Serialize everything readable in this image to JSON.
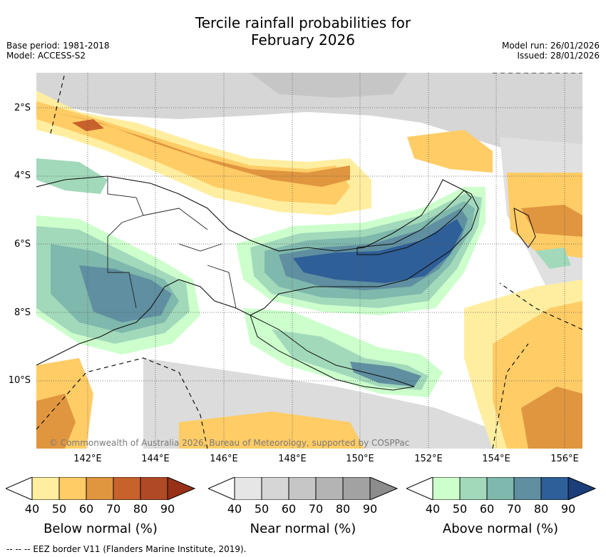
{
  "title_line1": "Tercile rainfall probabilities for",
  "title_line2": "February 2026",
  "base_period": "Base period: 1981-2018",
  "model": "Model: ACCESS-S2",
  "model_run": "Model run: 26/01/2026",
  "issued": "Issued: 28/01/2026",
  "lat_labels": [
    "2°S",
    "4°S",
    "6°S",
    "8°S",
    "10°S"
  ],
  "lon_labels": [
    "142°E",
    "144°E",
    "146°E",
    "148°E",
    "150°E",
    "152°E",
    "154°E",
    "156°E"
  ],
  "copyright": "© Commonwealth of Australia 2026, Bureau of Meteorology, supported by COSPPac",
  "colorbars": [
    {
      "title": "Below normal (%)",
      "ticks": [
        "40",
        "50",
        "60",
        "70",
        "80",
        "90"
      ],
      "colors": [
        "#ffeea0",
        "#ffcc66",
        "#e0953f",
        "#c8622c",
        "#b04a26",
        "#983018"
      ]
    },
    {
      "title": "Near normal (%)",
      "ticks": [
        "40",
        "50",
        "60",
        "70",
        "80",
        "90"
      ],
      "colors": [
        "#e6e6e6",
        "#d6d6d6",
        "#c6c6c6",
        "#b4b4b4",
        "#a2a2a2",
        "#8c8c8c"
      ]
    },
    {
      "title": "Above normal (%)",
      "ticks": [
        "40",
        "50",
        "60",
        "70",
        "80",
        "90"
      ],
      "colors": [
        "#ccffcc",
        "#a2d9bb",
        "#7fb8ac",
        "#5f8fa0",
        "#2f5f98",
        "#1c3f7a"
      ]
    }
  ],
  "footer": "--  --  -- EEZ border V11 (Flanders Marine Institute, 2019)."
}
